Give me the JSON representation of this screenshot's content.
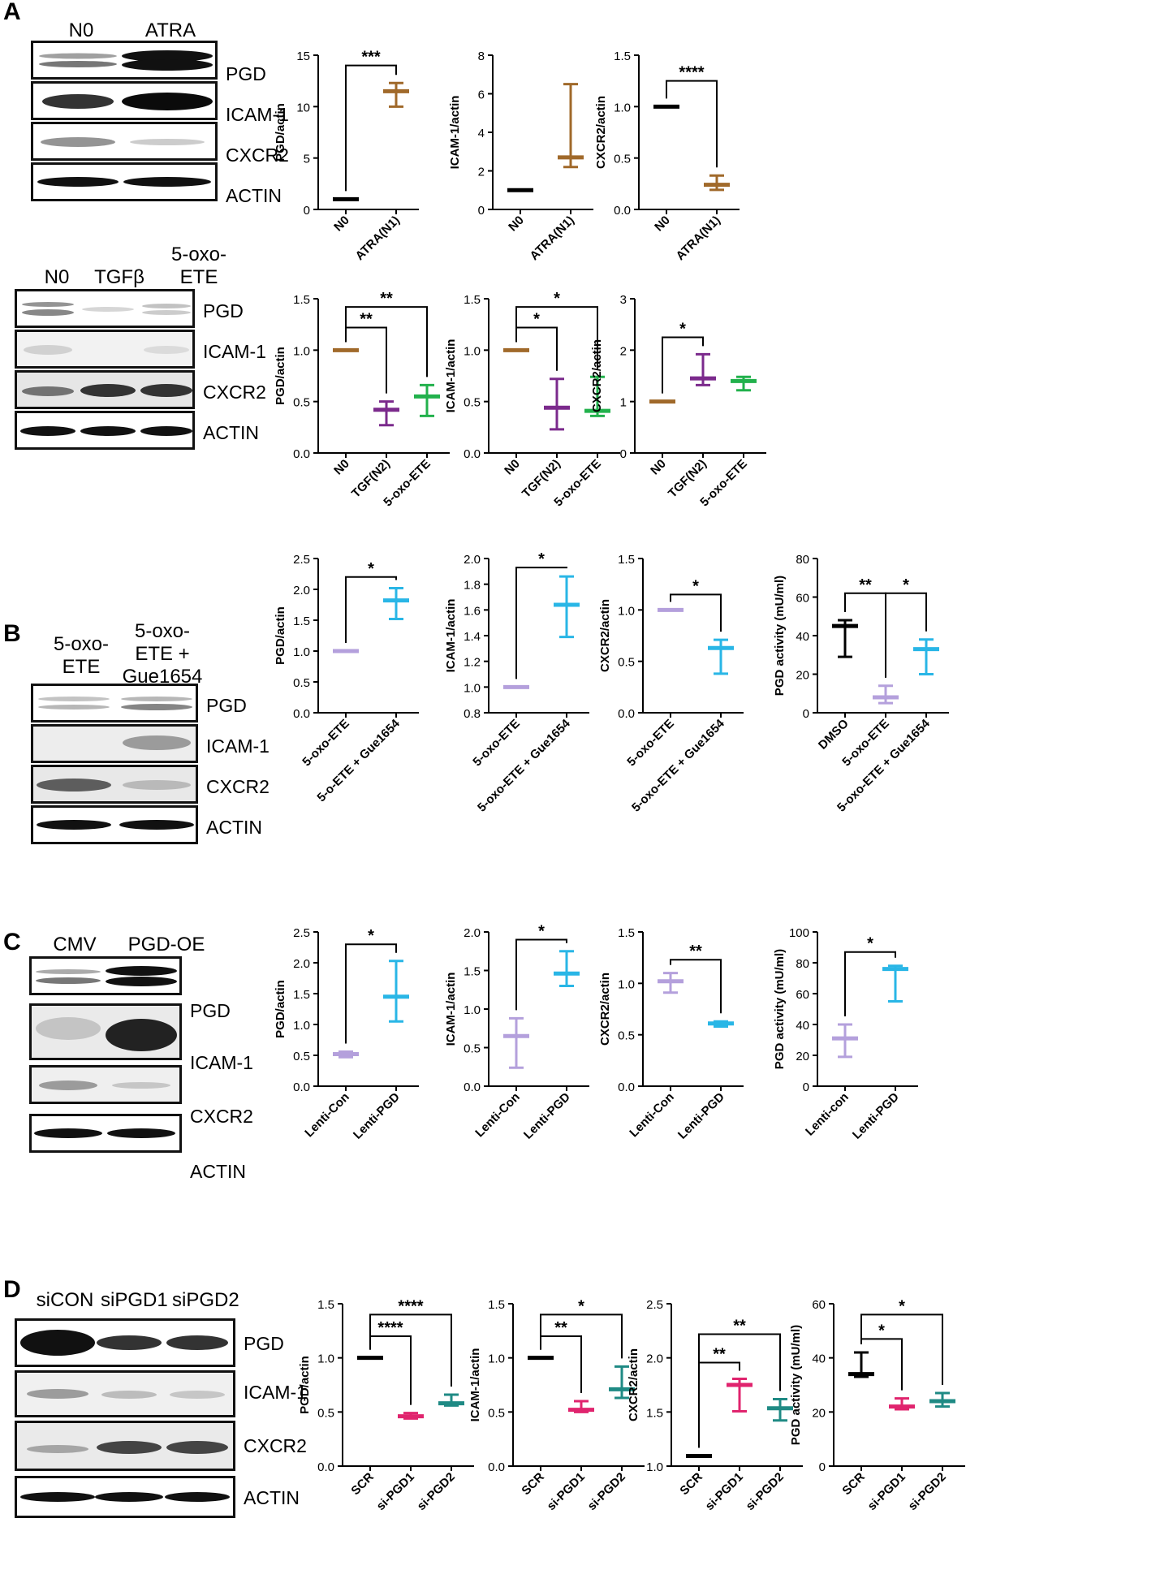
{
  "panel_letters": [
    "A",
    "B",
    "C",
    "D"
  ],
  "blots": [
    {
      "headers": [
        "N0",
        "ATRA"
      ],
      "bands": [
        "PGD",
        "ICAM-1",
        "CXCR2",
        "ACTIN"
      ]
    },
    {
      "headers": [
        "N0",
        "TGFβ",
        "5-oxo-ETE"
      ],
      "bands": [
        "PGD",
        "ICAM-1",
        "CXCR2",
        "ACTIN"
      ]
    },
    {
      "headers": [
        "5-oxo-ETE",
        "5-oxo-ETE + Gue1654"
      ],
      "bands": [
        "PGD",
        "ICAM-1",
        "CXCR2",
        "ACTIN"
      ]
    },
    {
      "headers": [
        "CMV",
        "PGD-OE"
      ],
      "bands": [
        "PGD",
        "ICAM-1",
        "CXCR2",
        "ACTIN"
      ]
    },
    {
      "headers": [
        "siCON",
        "siPGD1",
        "siPGD2"
      ],
      "bands": [
        "PGD",
        "ICAM-1",
        "CXCR2",
        "ACTIN"
      ]
    }
  ],
  "chart_data": [
    {
      "type": "scatter",
      "panel": "A",
      "ylabel": "PGD/actin",
      "ylim": [
        0,
        15
      ],
      "yticks": [
        "0",
        "5",
        "10",
        "15"
      ],
      "categories": [
        "N0",
        "ATRA(N1)"
      ],
      "groups": [
        {
          "mean": 1.0,
          "min": 1.0,
          "max": 1.0,
          "color": "#000000"
        },
        {
          "mean": 11.5,
          "min": 10.0,
          "max": 12.3,
          "color": "#a0692a"
        }
      ],
      "significance": [
        {
          "from": 0,
          "to": 1,
          "label": "***",
          "y": 14.0
        }
      ]
    },
    {
      "type": "scatter",
      "panel": "A",
      "ylabel": "ICAM-1/actin",
      "ylim": [
        0,
        8
      ],
      "yticks": [
        "0",
        "2",
        "4",
        "6",
        "8"
      ],
      "categories": [
        "N0",
        "ATRA(N1)"
      ],
      "groups": [
        {
          "mean": 1.0,
          "min": 1.0,
          "max": 1.0,
          "color": "#000000"
        },
        {
          "mean": 2.7,
          "min": 2.2,
          "max": 6.5,
          "color": "#a0692a"
        }
      ],
      "significance": []
    },
    {
      "type": "scatter",
      "panel": "A",
      "ylabel": "CXCR2/actin",
      "ylim": [
        0,
        1.5
      ],
      "yticks": [
        "0.0",
        "0.5",
        "1.0",
        "1.5"
      ],
      "categories": [
        "N0",
        "ATRA(N1)"
      ],
      "groups": [
        {
          "mean": 1.0,
          "min": 1.0,
          "max": 1.0,
          "color": "#000000"
        },
        {
          "mean": 0.24,
          "min": 0.19,
          "max": 0.33,
          "color": "#a0692a"
        }
      ],
      "significance": [
        {
          "from": 0,
          "to": 1,
          "label": "****",
          "y": 1.25
        }
      ]
    },
    {
      "type": "scatter",
      "panel": "A",
      "ylabel": "PGD/actin",
      "ylim": [
        0,
        1.5
      ],
      "yticks": [
        "0.0",
        "0.5",
        "1.0",
        "1.5"
      ],
      "categories": [
        "N0",
        "TGF(N2)",
        "5-oxo-ETE"
      ],
      "groups": [
        {
          "mean": 1.0,
          "min": 1.0,
          "max": 1.0,
          "color": "#a0692a"
        },
        {
          "mean": 0.42,
          "min": 0.27,
          "max": 0.5,
          "color": "#7b2a8c"
        },
        {
          "mean": 0.55,
          "min": 0.36,
          "max": 0.66,
          "color": "#22b14c"
        }
      ],
      "significance": [
        {
          "from": 0,
          "to": 1,
          "label": "**",
          "y": 1.22
        },
        {
          "from": 0,
          "to": 2,
          "label": "**",
          "y": 1.42
        }
      ]
    },
    {
      "type": "scatter",
      "panel": "A",
      "ylabel": "ICAM-1/actin",
      "ylim": [
        0,
        1.5
      ],
      "yticks": [
        "0.0",
        "0.5",
        "1.0",
        "1.5"
      ],
      "categories": [
        "N0",
        "TGF(N2)",
        "5-oxo-ETE"
      ],
      "groups": [
        {
          "mean": 1.0,
          "min": 1.0,
          "max": 1.0,
          "color": "#a0692a"
        },
        {
          "mean": 0.44,
          "min": 0.23,
          "max": 0.72,
          "color": "#7b2a8c"
        },
        {
          "mean": 0.41,
          "min": 0.36,
          "max": 0.74,
          "color": "#22b14c"
        }
      ],
      "significance": [
        {
          "from": 0,
          "to": 1,
          "label": "*",
          "y": 1.22
        },
        {
          "from": 0,
          "to": 2,
          "label": "*",
          "y": 1.42
        }
      ]
    },
    {
      "type": "scatter",
      "panel": "A",
      "ylabel": "CXCR2/actin",
      "ylim": [
        0,
        3
      ],
      "yticks": [
        "0",
        "1",
        "2",
        "3"
      ],
      "categories": [
        "N0",
        "TGF(N2)",
        "5-oxo-ETE"
      ],
      "groups": [
        {
          "mean": 1.0,
          "min": 1.0,
          "max": 1.0,
          "color": "#a0692a"
        },
        {
          "mean": 1.45,
          "min": 1.32,
          "max": 1.92,
          "color": "#7b2a8c"
        },
        {
          "mean": 1.4,
          "min": 1.22,
          "max": 1.48,
          "color": "#22b14c"
        }
      ],
      "significance": [
        {
          "from": 0,
          "to": 1,
          "label": "*",
          "y": 2.25
        }
      ]
    },
    {
      "type": "scatter",
      "panel": "B",
      "ylabel": "PGD/actin",
      "ylim": [
        0,
        2.5
      ],
      "yticks": [
        "0.0",
        "0.5",
        "1.0",
        "1.5",
        "2.0",
        "2.5"
      ],
      "categories": [
        "5-oxo-ETE",
        "5-o-ETE + Gue1654"
      ],
      "groups": [
        {
          "mean": 1.0,
          "min": 1.0,
          "max": 1.0,
          "color": "#b4a0dc"
        },
        {
          "mean": 1.82,
          "min": 1.52,
          "max": 2.02,
          "color": "#29b6e6"
        }
      ],
      "significance": [
        {
          "from": 0,
          "to": 1,
          "label": "*",
          "y": 2.2
        }
      ]
    },
    {
      "type": "scatter",
      "panel": "B",
      "ylabel": "ICAM-1/actin",
      "ylim": [
        0.8,
        2.0
      ],
      "yticks": [
        "0.8",
        "1.0",
        "1.2",
        "1.4",
        "1.6",
        "1.8",
        "2.0"
      ],
      "categories": [
        "5-oxo-ETE",
        "5-oxo-ETE + Gue1654"
      ],
      "groups": [
        {
          "mean": 1.0,
          "min": 1.0,
          "max": 1.0,
          "color": "#b4a0dc"
        },
        {
          "mean": 1.64,
          "min": 1.39,
          "max": 1.86,
          "color": "#29b6e6"
        }
      ],
      "significance": [
        {
          "from": 0,
          "to": 1,
          "label": "*",
          "y": 1.93
        }
      ]
    },
    {
      "type": "scatter",
      "panel": "B",
      "ylabel": "CXCR2/actin",
      "ylim": [
        0,
        1.5
      ],
      "yticks": [
        "0.0",
        "0.5",
        "1.0",
        "1.5"
      ],
      "categories": [
        "5-oxo-ETE",
        "5-oxo-ETE + Gue1654"
      ],
      "groups": [
        {
          "mean": 1.0,
          "min": 1.0,
          "max": 1.0,
          "color": "#b4a0dc"
        },
        {
          "mean": 0.63,
          "min": 0.38,
          "max": 0.71,
          "color": "#29b6e6"
        }
      ],
      "significance": [
        {
          "from": 0,
          "to": 1,
          "label": "*",
          "y": 1.15
        }
      ]
    },
    {
      "type": "scatter",
      "panel": "B",
      "ylabel": "PGD activity (mU/ml)",
      "ylim": [
        0,
        80
      ],
      "yticks": [
        "0",
        "20",
        "40",
        "60",
        "80"
      ],
      "categories": [
        "DMSO",
        "5-oxo-ETE",
        "5-oxo-ETE + Gue1654"
      ],
      "groups": [
        {
          "mean": 45,
          "min": 29,
          "max": 48,
          "color": "#000000"
        },
        {
          "mean": 8,
          "min": 5,
          "max": 14,
          "color": "#b4a0dc"
        },
        {
          "mean": 33,
          "min": 20,
          "max": 38,
          "color": "#29b6e6"
        }
      ],
      "significance": [
        {
          "from": 0,
          "to": 1,
          "label": "**",
          "y": 62
        },
        {
          "from": 1,
          "to": 2,
          "label": "*",
          "y": 62
        }
      ]
    },
    {
      "type": "scatter",
      "panel": "C",
      "ylabel": "PGD/actin",
      "ylim": [
        0,
        2.5
      ],
      "yticks": [
        "0.0",
        "0.5",
        "1.0",
        "1.5",
        "2.0",
        "2.5"
      ],
      "categories": [
        "Lenti-Con",
        "Lenti-PGD"
      ],
      "groups": [
        {
          "mean": 0.52,
          "min": 0.47,
          "max": 0.56,
          "color": "#b4a0dc"
        },
        {
          "mean": 1.45,
          "min": 1.05,
          "max": 2.03,
          "color": "#29b6e6"
        }
      ],
      "significance": [
        {
          "from": 0,
          "to": 1,
          "label": "*",
          "y": 2.3
        }
      ]
    },
    {
      "type": "scatter",
      "panel": "C",
      "ylabel": "ICAM-1/actin",
      "ylim": [
        0,
        2.0
      ],
      "yticks": [
        "0.0",
        "0.5",
        "1.0",
        "1.5",
        "2.0"
      ],
      "categories": [
        "Lenti-Con",
        "Lenti-PGD"
      ],
      "groups": [
        {
          "mean": 0.65,
          "min": 0.24,
          "max": 0.88,
          "color": "#b4a0dc"
        },
        {
          "mean": 1.46,
          "min": 1.3,
          "max": 1.75,
          "color": "#29b6e6"
        }
      ],
      "significance": [
        {
          "from": 0,
          "to": 1,
          "label": "*",
          "y": 1.9
        }
      ]
    },
    {
      "type": "scatter",
      "panel": "C",
      "ylabel": "CXCR2/actin",
      "ylim": [
        0,
        1.5
      ],
      "yticks": [
        "0.0",
        "0.5",
        "1.0",
        "1.5"
      ],
      "categories": [
        "Lenti-Con",
        "Lenti-PGD"
      ],
      "groups": [
        {
          "mean": 1.02,
          "min": 0.91,
          "max": 1.1,
          "color": "#b4a0dc"
        },
        {
          "mean": 0.61,
          "min": 0.58,
          "max": 0.63,
          "color": "#29b6e6"
        }
      ],
      "significance": [
        {
          "from": 0,
          "to": 1,
          "label": "**",
          "y": 1.23
        }
      ]
    },
    {
      "type": "scatter",
      "panel": "C",
      "ylabel": "PGD activity (mU/ml)",
      "ylim": [
        0,
        100
      ],
      "yticks": [
        "0",
        "20",
        "40",
        "60",
        "80",
        "100"
      ],
      "categories": [
        "Lenti-con",
        "Lenti-PGD"
      ],
      "groups": [
        {
          "mean": 31,
          "min": 19,
          "max": 40,
          "color": "#b4a0dc"
        },
        {
          "mean": 76,
          "min": 55,
          "max": 78,
          "color": "#29b6e6"
        }
      ],
      "significance": [
        {
          "from": 0,
          "to": 1,
          "label": "*",
          "y": 87
        }
      ]
    },
    {
      "type": "scatter",
      "panel": "D",
      "ylabel": "PGD/actin",
      "ylim": [
        0,
        1.5
      ],
      "yticks": [
        "0.0",
        "0.5",
        "1.0",
        "1.5"
      ],
      "categories": [
        "SCR",
        "si-PGD1",
        "si-PGD2"
      ],
      "groups": [
        {
          "mean": 1.0,
          "min": 1.0,
          "max": 1.0,
          "color": "#000000"
        },
        {
          "mean": 0.46,
          "min": 0.44,
          "max": 0.49,
          "color": "#e0246e"
        },
        {
          "mean": 0.58,
          "min": 0.56,
          "max": 0.66,
          "color": "#1f8a84"
        }
      ],
      "significance": [
        {
          "from": 0,
          "to": 1,
          "label": "****",
          "y": 1.2
        },
        {
          "from": 0,
          "to": 2,
          "label": "****",
          "y": 1.4
        }
      ]
    },
    {
      "type": "scatter",
      "panel": "D",
      "ylabel": "ICAM-1/actin",
      "ylim": [
        0,
        1.5
      ],
      "yticks": [
        "0.0",
        "0.5",
        "1.0",
        "1.5"
      ],
      "categories": [
        "SCR",
        "si-PGD1",
        "si-PGD2"
      ],
      "groups": [
        {
          "mean": 1.0,
          "min": 1.0,
          "max": 1.0,
          "color": "#000000"
        },
        {
          "mean": 0.52,
          "min": 0.5,
          "max": 0.6,
          "color": "#e0246e"
        },
        {
          "mean": 0.71,
          "min": 0.63,
          "max": 0.92,
          "color": "#1f8a84"
        }
      ],
      "significance": [
        {
          "from": 0,
          "to": 1,
          "label": "**",
          "y": 1.2
        },
        {
          "from": 0,
          "to": 2,
          "label": "*",
          "y": 1.4
        }
      ]
    },
    {
      "type": "scatter",
      "panel": "D",
      "ylabel": "CXCR2/actin",
      "ylim": [
        0.9,
        2.5
      ],
      "yticks": [
        "1.0",
        "1.5",
        "2.0",
        "2.5"
      ],
      "categories": [
        "SCR",
        "si-PGD1",
        "si-PGD2"
      ],
      "groups": [
        {
          "mean": 1.0,
          "min": 1.0,
          "max": 1.0,
          "color": "#000000"
        },
        {
          "mean": 1.7,
          "min": 1.44,
          "max": 1.76,
          "color": "#e0246e"
        },
        {
          "mean": 1.47,
          "min": 1.35,
          "max": 1.56,
          "color": "#1f8a84"
        }
      ],
      "significance": [
        {
          "from": 0,
          "to": 1,
          "label": "**",
          "y": 1.92
        },
        {
          "from": 0,
          "to": 2,
          "label": "**",
          "y": 2.2
        }
      ]
    },
    {
      "type": "scatter",
      "panel": "D",
      "ylabel": "PGD activity (mU/ml)",
      "ylim": [
        0,
        60
      ],
      "yticks": [
        "0",
        "20",
        "40",
        "60"
      ],
      "categories": [
        "SCR",
        "si-PGD1",
        "si-PGD2"
      ],
      "groups": [
        {
          "mean": 34,
          "min": 33,
          "max": 42,
          "color": "#000000"
        },
        {
          "mean": 22,
          "min": 21,
          "max": 25,
          "color": "#e0246e"
        },
        {
          "mean": 24,
          "min": 22,
          "max": 27,
          "color": "#1f8a84"
        }
      ],
      "significance": [
        {
          "from": 0,
          "to": 1,
          "label": "*",
          "y": 47
        },
        {
          "from": 0,
          "to": 2,
          "label": "*",
          "y": 56
        }
      ]
    }
  ]
}
